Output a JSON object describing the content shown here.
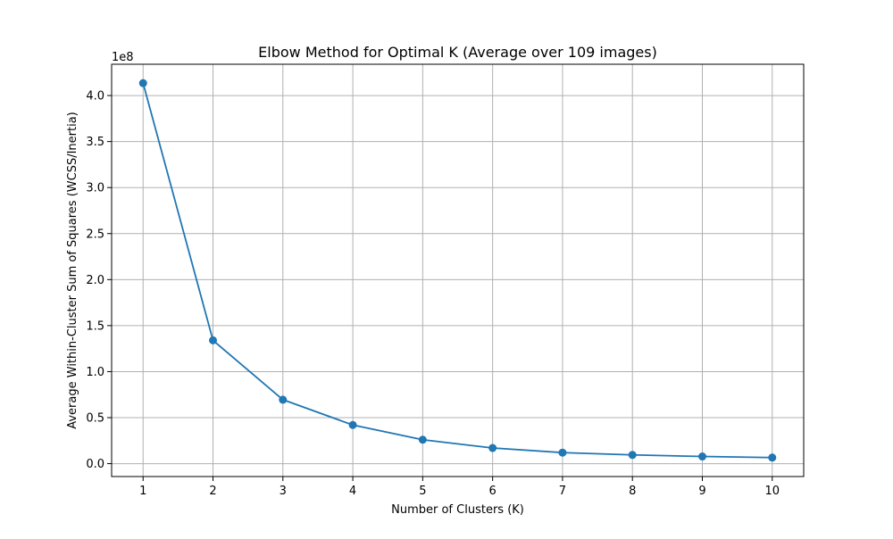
{
  "chart_data": {
    "type": "line",
    "title": "Elbow Method for Optimal K (Average over 109 images)",
    "xlabel": "Number of Clusters (K)",
    "ylabel": "Average Within-Cluster Sum of Squares (WCSS/Inertia)",
    "y_offset_label": "1e8",
    "x": [
      1,
      2,
      3,
      4,
      5,
      6,
      7,
      8,
      9,
      10
    ],
    "series": [
      {
        "values": [
          413500000,
          134000000,
          69500000,
          42000000,
          26000000,
          17000000,
          12000000,
          9500000,
          7800000,
          6600000
        ],
        "color": "#1f77b4",
        "marker": "circle"
      }
    ],
    "xticks": [
      1,
      2,
      3,
      4,
      5,
      6,
      7,
      8,
      9,
      10
    ],
    "xtick_labels": [
      "1",
      "2",
      "3",
      "4",
      "5",
      "6",
      "7",
      "8",
      "9",
      "10"
    ],
    "yticks": [
      0,
      50000000,
      100000000,
      150000000,
      200000000,
      250000000,
      300000000,
      350000000,
      400000000
    ],
    "ytick_labels": [
      "0.0",
      "0.5",
      "1.0",
      "1.5",
      "2.0",
      "2.5",
      "3.0",
      "3.5",
      "4.0"
    ],
    "xlim": [
      0.55,
      10.45
    ],
    "ylim": [
      -14000000,
      434000000
    ],
    "grid": true,
    "grid_color": "#b0b0b0"
  }
}
